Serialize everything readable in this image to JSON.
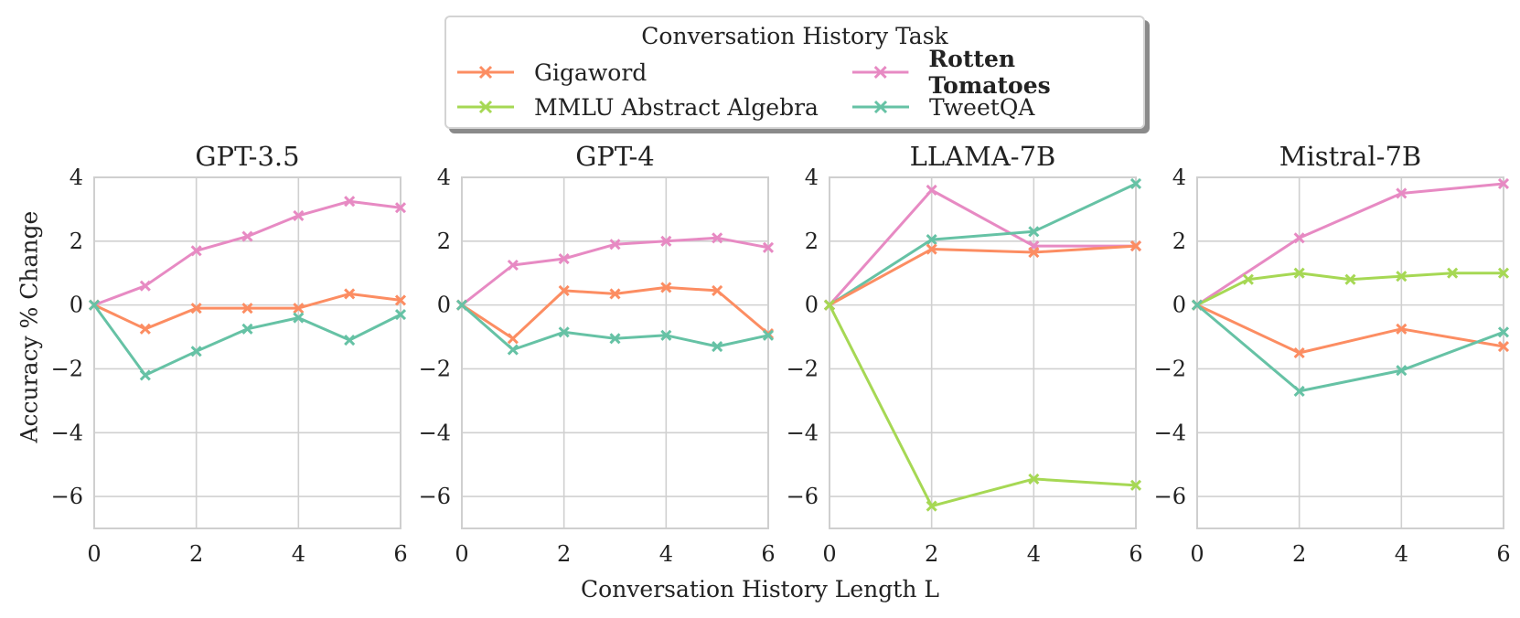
{
  "legend": {
    "title": "Conversation History Task",
    "items": [
      {
        "label": "Gigaword",
        "color": "#fc8d62"
      },
      {
        "label": "Rotten Tomatoes",
        "color": "#e78ac3"
      },
      {
        "label": "MMLU Abstract Algebra",
        "color": "#a6d854"
      },
      {
        "label": "TweetQA",
        "color": "#66c2a5"
      }
    ]
  },
  "axes": {
    "xlabel": "Conversation History Length L",
    "ylabel": "Accuracy % Change"
  },
  "chart_data": [
    {
      "type": "line",
      "title": "GPT-3.5",
      "xlim": [
        0,
        6
      ],
      "ylim": [
        -7,
        4
      ],
      "xticks": [
        0,
        2,
        4,
        6
      ],
      "yticks": [
        4,
        2,
        0,
        -2,
        -4,
        -6
      ],
      "series": [
        {
          "name": "Rotten Tomatoes",
          "color": "#e78ac3",
          "x": [
            0,
            1,
            2,
            3,
            4,
            5,
            6
          ],
          "y": [
            0,
            0.6,
            1.7,
            2.15,
            2.8,
            3.25,
            3.05
          ]
        },
        {
          "name": "Gigaword",
          "color": "#fc8d62",
          "x": [
            0,
            1,
            2,
            3,
            4,
            5,
            6
          ],
          "y": [
            0,
            -0.75,
            -0.1,
            -0.1,
            -0.1,
            0.35,
            0.15
          ]
        },
        {
          "name": "TweetQA",
          "color": "#66c2a5",
          "x": [
            0,
            1,
            2,
            3,
            4,
            5,
            6
          ],
          "y": [
            0,
            -2.2,
            -1.45,
            -0.75,
            -0.4,
            -1.1,
            -0.3
          ]
        }
      ]
    },
    {
      "type": "line",
      "title": "GPT-4",
      "xlim": [
        0,
        6
      ],
      "ylim": [
        -7,
        4
      ],
      "xticks": [
        0,
        2,
        4,
        6
      ],
      "yticks": [
        4,
        2,
        0,
        -2,
        -4,
        -6
      ],
      "series": [
        {
          "name": "Rotten Tomatoes",
          "color": "#e78ac3",
          "x": [
            0,
            1,
            2,
            3,
            4,
            5,
            6
          ],
          "y": [
            0,
            1.25,
            1.45,
            1.9,
            2.0,
            2.1,
            1.8
          ]
        },
        {
          "name": "Gigaword",
          "color": "#fc8d62",
          "x": [
            0,
            1,
            2,
            3,
            4,
            5,
            6
          ],
          "y": [
            0,
            -1.05,
            0.45,
            0.35,
            0.55,
            0.45,
            -0.9
          ]
        },
        {
          "name": "TweetQA",
          "color": "#66c2a5",
          "x": [
            0,
            1,
            2,
            3,
            4,
            5,
            6
          ],
          "y": [
            0,
            -1.4,
            -0.85,
            -1.05,
            -0.95,
            -1.3,
            -0.95
          ]
        }
      ]
    },
    {
      "type": "line",
      "title": "LLAMA-7B",
      "xlim": [
        0,
        6
      ],
      "ylim": [
        -7,
        4
      ],
      "xticks": [
        0,
        2,
        4,
        6
      ],
      "yticks": [
        4,
        2,
        0,
        -2,
        -4,
        -6
      ],
      "series": [
        {
          "name": "Rotten Tomatoes",
          "color": "#e78ac3",
          "x": [
            0,
            2,
            4,
            6
          ],
          "y": [
            0,
            3.6,
            1.85,
            1.85
          ]
        },
        {
          "name": "TweetQA",
          "color": "#66c2a5",
          "x": [
            0,
            2,
            4,
            6
          ],
          "y": [
            0,
            2.05,
            2.3,
            3.8
          ]
        },
        {
          "name": "Gigaword",
          "color": "#fc8d62",
          "x": [
            0,
            2,
            4,
            6
          ],
          "y": [
            0,
            1.75,
            1.65,
            1.85
          ]
        },
        {
          "name": "MMLU Abstract Algebra",
          "color": "#a6d854",
          "x": [
            0,
            2,
            4,
            6
          ],
          "y": [
            0,
            -6.3,
            -5.45,
            -5.65
          ]
        }
      ]
    },
    {
      "type": "line",
      "title": "Mistral-7B",
      "xlim": [
        0,
        6
      ],
      "ylim": [
        -7,
        4
      ],
      "xticks": [
        0,
        2,
        4,
        6
      ],
      "yticks": [
        4,
        2,
        0,
        -2,
        -4,
        -6
      ],
      "series": [
        {
          "name": "Rotten Tomatoes",
          "color": "#e78ac3",
          "x": [
            0,
            2,
            4,
            6
          ],
          "y": [
            0,
            2.1,
            3.5,
            3.8
          ]
        },
        {
          "name": "MMLU Abstract Algebra",
          "color": "#a6d854",
          "x": [
            0,
            1,
            2,
            3,
            4,
            5,
            6
          ],
          "y": [
            0,
            0.8,
            1.0,
            0.8,
            0.9,
            1.0,
            1.0
          ]
        },
        {
          "name": "Gigaword",
          "color": "#fc8d62",
          "x": [
            0,
            2,
            4,
            6
          ],
          "y": [
            0,
            -1.5,
            -0.75,
            -1.3
          ]
        },
        {
          "name": "TweetQA",
          "color": "#66c2a5",
          "x": [
            0,
            2,
            4,
            6
          ],
          "y": [
            0,
            -2.7,
            -2.05,
            -0.85
          ]
        }
      ]
    }
  ]
}
